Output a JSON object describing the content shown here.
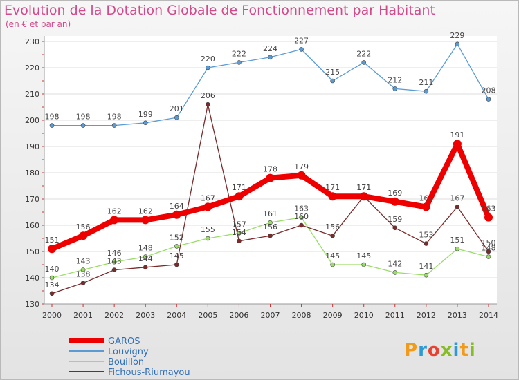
{
  "header": {
    "title": "Evolution de la Dotation Globale de Fonctionnement par Habitant",
    "subtitle": "(en € et par an)"
  },
  "logo": {
    "text": "Proxiti",
    "colors": [
      "#f29b1b",
      "#2d9ad6",
      "#e8412f",
      "#86bd27",
      "#2d9ad6",
      "#f29b1b",
      "#86bd27"
    ]
  },
  "chart_data": {
    "type": "line",
    "x": [
      "2000",
      "2001",
      "2002",
      "2003",
      "2004",
      "2005",
      "2006",
      "2007",
      "2008",
      "2009",
      "2010",
      "2011",
      "2012",
      "2013",
      "2014"
    ],
    "ylim": [
      130,
      230
    ],
    "yticks": [
      130,
      140,
      150,
      160,
      170,
      180,
      190,
      200,
      210,
      220,
      230
    ],
    "grid": "horizontal",
    "legend": "bottom-left",
    "series": [
      {
        "name": "GAROS",
        "color": "#ee0000",
        "values": [
          151,
          156,
          162,
          162,
          164,
          167,
          171,
          178,
          179,
          171,
          171,
          169,
          167,
          191,
          163
        ]
      },
      {
        "name": "Louvigny",
        "color": "#5a9bd5",
        "values": [
          198,
          198,
          198,
          199,
          201,
          220,
          222,
          224,
          227,
          215,
          222,
          212,
          211,
          229,
          208
        ]
      },
      {
        "name": "Bouillon",
        "color": "#99dd66",
        "values": [
          140,
          143,
          146,
          148,
          152,
          155,
          157,
          161,
          163,
          145,
          145,
          142,
          141,
          151,
          148
        ]
      },
      {
        "name": "Fichous-Riumayou",
        "color": "#7a2a2a",
        "values": [
          134,
          138,
          143,
          144,
          145,
          206,
          154,
          156,
          160,
          156,
          171,
          159,
          153,
          167,
          150
        ]
      }
    ]
  }
}
